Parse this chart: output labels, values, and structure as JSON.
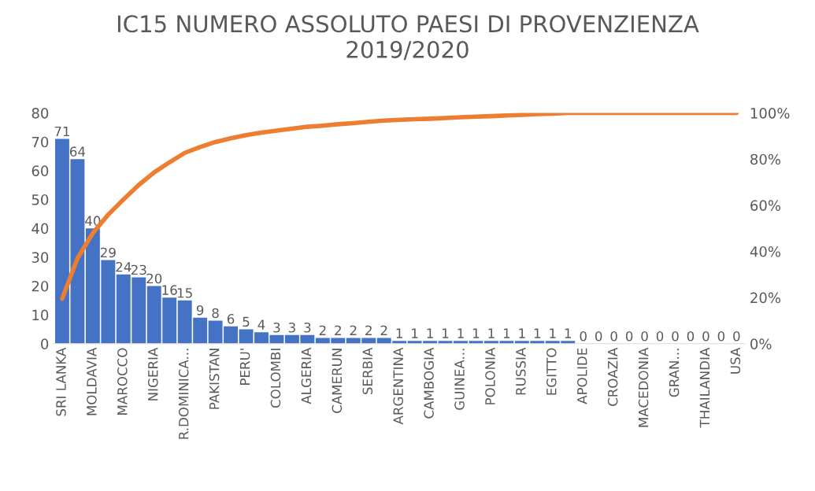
{
  "chart_data": {
    "type": "bar",
    "title": "IC15 NUMERO ASSOLUTO PAESI DI PROVENZIENZA\n2019/2020",
    "categories": [
      "SRI LANKA",
      null,
      "MOLDAVIA",
      null,
      "MAROCCO",
      null,
      "NIGERIA",
      null,
      "R.DOMINICA...",
      null,
      "PAKISTAN",
      null,
      "PERU'",
      null,
      "COLOMBI",
      null,
      "ALGERIA",
      null,
      "CAMERUN",
      null,
      "SERBIA",
      null,
      "ARGENTINA",
      null,
      "CAMBOGIA",
      null,
      "GUINEA...",
      null,
      "POLONIA",
      null,
      "RUSSIA",
      null,
      "EGITTO",
      null,
      "APOLIDE",
      null,
      "CROAZIA",
      null,
      "MACEDONIA",
      null,
      "GRAN...",
      null,
      "THAILANDIA",
      null,
      "USA"
    ],
    "series": [
      {
        "color": "#4472c4",
        "values": [
          71,
          64,
          40,
          29,
          24,
          23,
          20,
          16,
          15,
          9,
          8,
          6,
          5,
          4,
          3,
          3,
          3,
          2,
          2,
          2,
          2,
          2,
          1,
          1,
          1,
          1,
          1,
          1,
          1,
          1,
          1,
          1,
          1,
          1,
          0,
          0,
          0,
          0,
          0,
          0,
          0,
          0,
          0,
          0,
          0
        ],
        "value_labels": [
          "71",
          "64",
          "40",
          "29",
          "24",
          "23",
          "20",
          "16",
          "15",
          "9",
          "8",
          "6",
          "5",
          "4",
          "3",
          "3",
          "3",
          "2",
          "2",
          "2",
          "2",
          "2",
          "1",
          "1",
          "1",
          "1",
          "1",
          "1",
          "1",
          "1",
          "1",
          "1",
          "1",
          "1",
          "0",
          "0",
          "0",
          "0",
          "0",
          "0",
          "0",
          "0",
          "0",
          "0",
          "0"
        ]
      },
      {
        "type": "line",
        "axis": "y2",
        "color": "#ed7d31",
        "values": [
          19.5,
          37.0,
          47.9,
          55.9,
          62.5,
          68.8,
          74.2,
          78.6,
          82.7,
          85.2,
          87.4,
          89.0,
          90.4,
          91.5,
          92.3,
          93.2,
          94.0,
          94.5,
          95.1,
          95.6,
          96.2,
          96.7,
          97.0,
          97.3,
          97.5,
          97.8,
          98.1,
          98.4,
          98.6,
          98.9,
          99.2,
          99.5,
          99.7,
          100,
          100,
          100,
          100,
          100,
          100,
          100,
          100,
          100,
          100,
          100,
          100
        ]
      }
    ],
    "ylim": [
      0,
      80
    ],
    "yticks": [
      0,
      10,
      20,
      30,
      40,
      50,
      60,
      70,
      80
    ],
    "y2lim": [
      0,
      100
    ],
    "y2ticks": [
      {
        "value": 0,
        "label": "0%"
      },
      {
        "value": 20,
        "label": "20%"
      },
      {
        "value": 40,
        "label": "40%"
      },
      {
        "value": 60,
        "label": "60%"
      },
      {
        "value": 80,
        "label": "80%"
      },
      {
        "value": 100,
        "label": "100%"
      }
    ],
    "grid": false,
    "legend": false
  }
}
